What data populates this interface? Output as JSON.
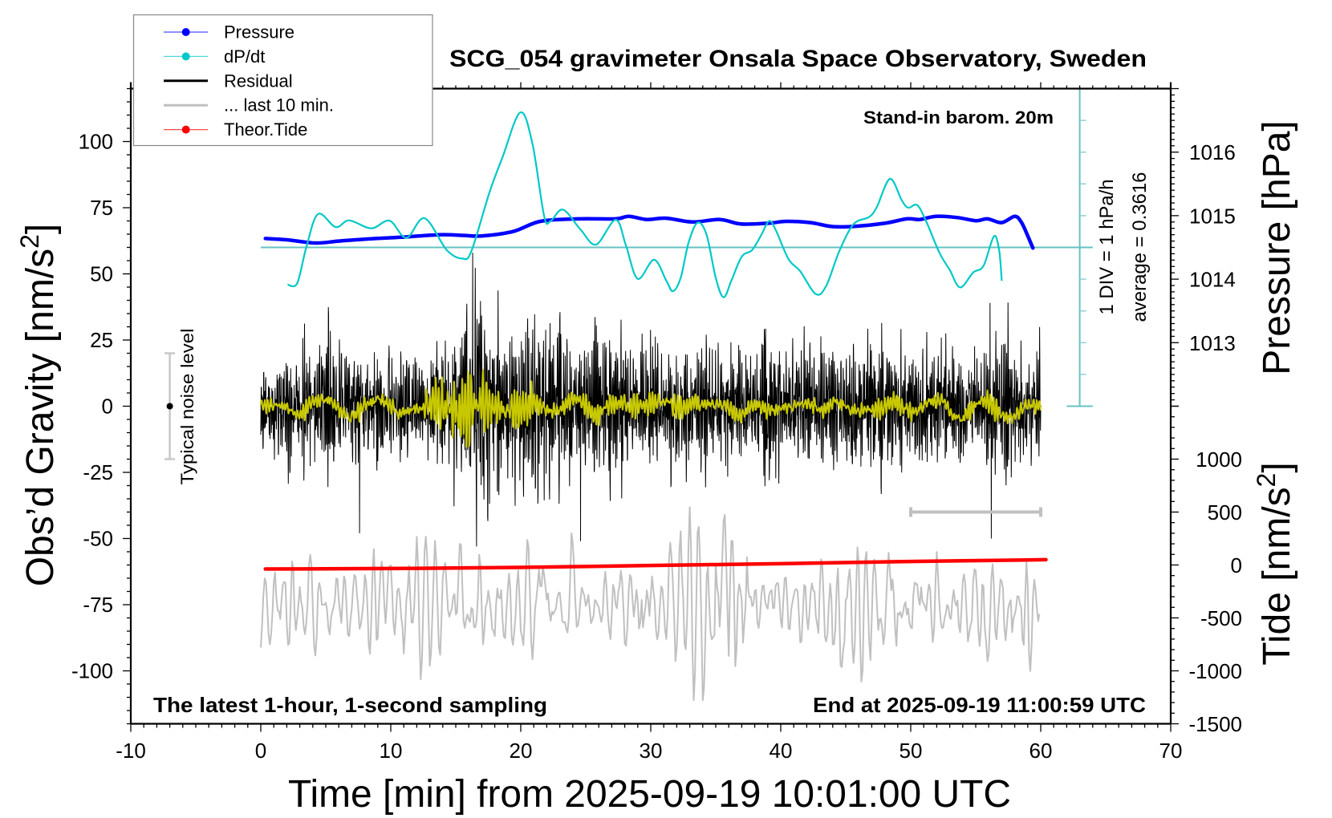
{
  "chart_data": {
    "type": "line",
    "title": "SCG_054 gravimeter Onsala Space Observatory, Sweden",
    "xlabel": "Time [min] from 2025-09-19 10:01:00 UTC",
    "ylabel": {
      "text": "Obs’d Gravity [nm/s",
      "sup": "2",
      "close": "]"
    },
    "ylabel_right_top": "Pressure [hPa]",
    "ylabel_right_bottom": {
      "text": "Tide [nm/s",
      "sup": "2",
      "close": "]"
    },
    "grid": false,
    "x_axis": {
      "range": [
        -10,
        70
      ],
      "major_step": 10,
      "minor_step": 1,
      "tick_values": [
        -10,
        0,
        10,
        20,
        30,
        40,
        50,
        60,
        70
      ],
      "tick_labels": [
        "-10",
        "0",
        "10",
        "20",
        "30",
        "40",
        "50",
        "60",
        "70"
      ]
    },
    "y_left": {
      "unit": "nm/s2",
      "range": [
        -120,
        120
      ],
      "major_step": 25,
      "minor_step": 5,
      "tick_values": [
        100,
        75,
        50,
        25,
        0,
        -25,
        -50,
        -75,
        -100
      ],
      "tick_labels": [
        "100",
        "75",
        "50",
        "25",
        "0",
        "-25",
        "-50",
        "-75",
        "-100"
      ]
    },
    "y_right_pressure": {
      "unit": "hPa",
      "range": [
        1012,
        1017
      ],
      "major_step": 1,
      "minor_step": 0.1,
      "tick_values": [
        1016,
        1015,
        1014,
        1013
      ],
      "tick_labels": [
        "1016",
        "1015",
        "1014",
        "1013"
      ]
    },
    "y_right_tide": {
      "unit": "nm/s2",
      "range": [
        -1500,
        1500
      ],
      "major_step": 500,
      "minor_step": 100,
      "tick_values": [
        1000,
        500,
        0,
        -500,
        -1000,
        -1500
      ],
      "tick_labels": [
        "1000",
        "500",
        "0",
        "-500",
        "-1000",
        "-1500"
      ]
    },
    "dpdt_axis": {
      "unit": "hPa/h",
      "range": [
        -5,
        5
      ],
      "div": 1,
      "div_label": "1 DIV = 1 hPa/h",
      "average_label": "average = 0.3616",
      "color": "#66c2c2"
    },
    "legend": {
      "position": "top-left",
      "entries": [
        {
          "label": "Pressure",
          "color": "#0000ff",
          "marker": true
        },
        {
          "label": "dP/dt",
          "color": "#00c8c8",
          "marker": true
        },
        {
          "label": "Residual",
          "color": "#000000",
          "marker": false
        },
        {
          "label": "... last 10 min.",
          "color": "#c0c0c0",
          "marker": false
        },
        {
          "label": "Theor.Tide",
          "color": "#ff0000",
          "marker": true
        }
      ]
    },
    "annotations": {
      "station_note": "Stand-in barom. 20m",
      "window_note": "The latest 1-hour, 1-second sampling",
      "end_time": "End at 2025-09-19 11:00:59 UTC"
    },
    "noise_level": {
      "label": "Typical noise level",
      "t": -7,
      "center": 0,
      "half_range": 20,
      "color": "#c8c8c8"
    },
    "last10_bar": {
      "t_start": 50,
      "t_end": 60,
      "tide_level": 500,
      "color": "#c0c0c0"
    },
    "series": {
      "pressure": {
        "name": "Pressure",
        "axis": "pressure",
        "color": "#0000ff",
        "points": [
          [
            0.35,
            1014.64
          ],
          [
            2,
            1014.62
          ],
          [
            4.2,
            1014.57
          ],
          [
            6,
            1014.6
          ],
          [
            8,
            1014.63
          ],
          [
            10.8,
            1014.66
          ],
          [
            13.7,
            1014.7
          ],
          [
            15.5,
            1014.69
          ],
          [
            17,
            1014.68
          ],
          [
            19.4,
            1014.75
          ],
          [
            21.5,
            1014.91
          ],
          [
            24.4,
            1014.95
          ],
          [
            27.3,
            1014.95
          ],
          [
            28.3,
            1014.99
          ],
          [
            29.7,
            1014.94
          ],
          [
            31.2,
            1014.96
          ],
          [
            33.2,
            1014.9
          ],
          [
            35.3,
            1014.94
          ],
          [
            36.9,
            1014.87
          ],
          [
            39,
            1014.88
          ],
          [
            40.4,
            1014.91
          ],
          [
            42.3,
            1014.89
          ],
          [
            43.9,
            1014.83
          ],
          [
            45.6,
            1014.83
          ],
          [
            48,
            1014.88
          ],
          [
            49.7,
            1014.95
          ],
          [
            50.7,
            1014.94
          ],
          [
            51.95,
            1014.99
          ],
          [
            53.6,
            1014.97
          ],
          [
            55,
            1014.92
          ],
          [
            55.9,
            1014.95
          ],
          [
            57,
            1014.89
          ],
          [
            58,
            1014.99
          ],
          [
            58.5,
            1014.9
          ],
          [
            58.9,
            1014.73
          ],
          [
            59.4,
            1014.49
          ]
        ]
      },
      "dpdt": {
        "name": "dP/dt",
        "axis": "dpdt",
        "color": "#00c8c8",
        "points": [
          [
            2.06,
            -1.17
          ],
          [
            2.8,
            -1.13
          ],
          [
            3.5,
            0
          ],
          [
            4.4,
            1.05
          ],
          [
            5.76,
            0.64
          ],
          [
            6.8,
            0.85
          ],
          [
            8.5,
            0.6
          ],
          [
            9.9,
            0.84
          ],
          [
            11.2,
            0.3
          ],
          [
            12.6,
            0.92
          ],
          [
            14.3,
            -0.08
          ],
          [
            15.5,
            -0.35
          ],
          [
            16.2,
            -0.12
          ],
          [
            17.6,
            1.74
          ],
          [
            18.6,
            2.84
          ],
          [
            19.96,
            4.25
          ],
          [
            20.9,
            3.26
          ],
          [
            21.8,
            0.98
          ],
          [
            22.3,
            0.83
          ],
          [
            23.25,
            1.19
          ],
          [
            24.6,
            0.56
          ],
          [
            25.8,
            0.09
          ],
          [
            27.3,
            0.87
          ],
          [
            28.1,
            0.05
          ],
          [
            29,
            -0.99
          ],
          [
            30.25,
            -0.39
          ],
          [
            31.2,
            -1.05
          ],
          [
            31.7,
            -1.38
          ],
          [
            32.3,
            -0.96
          ],
          [
            32.9,
            0.14
          ],
          [
            33.6,
            0.78
          ],
          [
            34.3,
            0.39
          ],
          [
            35,
            -0.96
          ],
          [
            35.6,
            -1.57
          ],
          [
            36.2,
            -1.05
          ],
          [
            37,
            -0.29
          ],
          [
            37.8,
            -0.08
          ],
          [
            38.5,
            0.39
          ],
          [
            39.1,
            0.83
          ],
          [
            39.6,
            0.56
          ],
          [
            40.6,
            -0.37
          ],
          [
            41.5,
            -0.75
          ],
          [
            42.7,
            -1.47
          ],
          [
            43.5,
            -1.21
          ],
          [
            44.5,
            -0.12
          ],
          [
            45.6,
            0.73
          ],
          [
            46.8,
            0.96
          ],
          [
            47.4,
            1.28
          ],
          [
            48.4,
            2.16
          ],
          [
            49.3,
            1.49
          ],
          [
            49.8,
            1.25
          ],
          [
            50.5,
            1.33
          ],
          [
            51.2,
            0.81
          ],
          [
            52.2,
            -0.16
          ],
          [
            53,
            -0.71
          ],
          [
            53.8,
            -1.26
          ],
          [
            54.8,
            -0.79
          ],
          [
            55.6,
            -0.58
          ],
          [
            56.4,
            0.35
          ],
          [
            56.8,
            -0.09
          ],
          [
            57,
            -1.05
          ]
        ]
      },
      "residual": {
        "name": "Residual",
        "axis": "gravity",
        "color": "#000000",
        "t_start": 0,
        "t_end": 60,
        "sample_interval_s": 1,
        "seed": 54,
        "amplitude_envelope": [
          [
            0,
            25
          ],
          [
            2,
            25
          ],
          [
            4,
            28
          ],
          [
            5,
            32
          ],
          [
            7,
            30
          ],
          [
            9,
            25
          ],
          [
            12,
            25
          ],
          [
            14,
            28
          ],
          [
            15,
            38
          ],
          [
            16,
            55
          ],
          [
            17,
            55
          ],
          [
            18,
            45
          ],
          [
            20,
            42
          ],
          [
            22,
            40
          ],
          [
            24,
            35
          ],
          [
            26,
            30
          ],
          [
            30,
            30
          ],
          [
            35,
            28
          ],
          [
            40,
            28
          ],
          [
            45,
            28
          ],
          [
            50,
            28
          ],
          [
            55,
            30
          ],
          [
            58,
            32
          ],
          [
            60,
            30
          ]
        ],
        "spikes": [
          [
            7.6,
            -48
          ],
          [
            16.3,
            58
          ],
          [
            16.6,
            -53
          ],
          [
            24.6,
            -51
          ],
          [
            56.1,
            39
          ],
          [
            56.2,
            -50
          ]
        ]
      },
      "residual_smoothed": {
        "name": "Residual (smoothed)",
        "axis": "gravity",
        "color": "#c8c800",
        "seed": 7,
        "amplitude_envelope": [
          [
            0,
            3
          ],
          [
            10,
            4
          ],
          [
            12,
            5
          ],
          [
            13.5,
            9
          ],
          [
            15,
            14
          ],
          [
            16.5,
            15
          ],
          [
            18,
            9
          ],
          [
            19,
            6
          ],
          [
            20.5,
            8
          ],
          [
            22,
            5
          ],
          [
            24,
            4
          ],
          [
            60,
            4
          ]
        ]
      },
      "last_10_min": {
        "name": "... last 10 min.",
        "axis": "gravity",
        "color": "#c0c0c0",
        "samples": 600,
        "offset": -75,
        "seed": 11,
        "amplitude_envelope": [
          [
            0,
            22
          ],
          [
            5,
            18
          ],
          [
            10,
            20
          ],
          [
            12.5,
            33
          ],
          [
            14,
            28
          ],
          [
            17,
            30
          ],
          [
            19,
            22
          ],
          [
            22,
            20
          ],
          [
            25,
            15
          ],
          [
            28,
            20
          ],
          [
            31,
            26
          ],
          [
            33,
            32
          ],
          [
            35,
            45
          ],
          [
            37,
            45
          ],
          [
            38.5,
            15
          ],
          [
            42,
            15
          ],
          [
            44,
            30
          ],
          [
            47,
            30
          ],
          [
            50,
            22
          ],
          [
            53,
            16
          ],
          [
            56,
            28
          ],
          [
            60,
            28
          ]
        ]
      },
      "theor_tide": {
        "name": "Theor.Tide",
        "axis": "tide",
        "color": "#ff0000",
        "points": [
          [
            0.35,
            -38
          ],
          [
            10,
            -33
          ],
          [
            20,
            -23
          ],
          [
            31,
            -3
          ],
          [
            40,
            12
          ],
          [
            50,
            33
          ],
          [
            60.4,
            50
          ]
        ]
      }
    }
  }
}
